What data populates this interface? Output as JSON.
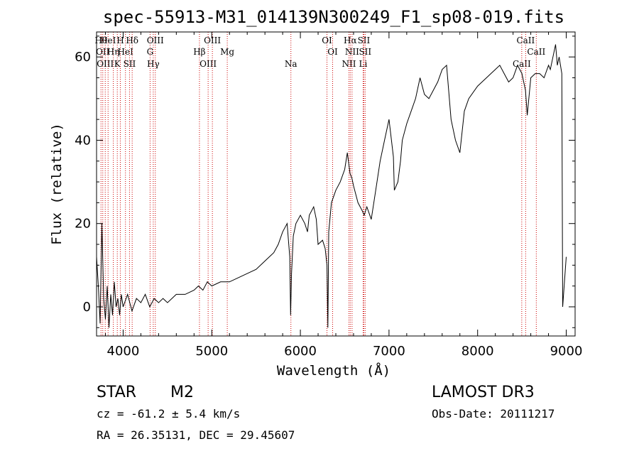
{
  "chart_data": {
    "type": "line",
    "title": "spec-55913-M31_014139N300249_F1_sp08-019.fits",
    "xlabel": "Wavelength (Å)",
    "ylabel": "Flux (relative)",
    "xlim": [
      3700,
      9100
    ],
    "ylim": [
      -7,
      66
    ],
    "xticks": [
      4000,
      5000,
      6000,
      7000,
      8000,
      9000
    ],
    "yticks": [
      0,
      20,
      40,
      60
    ],
    "series": [
      {
        "name": "flux",
        "x": [
          3700,
          3720,
          3740,
          3760,
          3780,
          3800,
          3820,
          3840,
          3860,
          3880,
          3900,
          3920,
          3940,
          3960,
          3980,
          4000,
          4050,
          4100,
          4150,
          4200,
          4250,
          4300,
          4350,
          4400,
          4450,
          4500,
          4600,
          4700,
          4800,
          4850,
          4900,
          4950,
          5000,
          5100,
          5200,
          5300,
          5400,
          5500,
          5600,
          5700,
          5750,
          5800,
          5850,
          5880,
          5890,
          5900,
          5920,
          5950,
          6000,
          6050,
          6080,
          6100,
          6150,
          6180,
          6200,
          6250,
          6280,
          6300,
          6310,
          6320,
          6350,
          6400,
          6450,
          6500,
          6530,
          6560,
          6580,
          6600,
          6650,
          6700,
          6720,
          6750,
          6800,
          6850,
          6900,
          6950,
          7000,
          7050,
          7060,
          7100,
          7130,
          7150,
          7200,
          7250,
          7300,
          7350,
          7400,
          7450,
          7500,
          7550,
          7600,
          7650,
          7700,
          7750,
          7800,
          7850,
          7900,
          8000,
          8050,
          8100,
          8150,
          8200,
          8250,
          8300,
          8350,
          8400,
          8450,
          8500,
          8540,
          8560,
          8600,
          8650,
          8700,
          8750,
          8800,
          8820,
          8850,
          8880,
          8900,
          8920,
          8950,
          8960,
          9000
        ],
        "y": [
          12,
          5,
          -4,
          20,
          2,
          -3,
          5,
          -5,
          3,
          -2,
          6,
          0,
          2,
          -2,
          3,
          0,
          3,
          -1,
          2,
          1,
          3,
          0,
          2,
          1,
          2,
          1,
          3,
          3,
          4,
          5,
          4,
          6,
          5,
          6,
          6,
          7,
          8,
          9,
          11,
          13,
          15,
          18,
          20,
          12,
          -2,
          8,
          17,
          20,
          22,
          20,
          18,
          22,
          24,
          21,
          15,
          16,
          14,
          10,
          -5,
          18,
          25,
          28,
          30,
          33,
          37,
          32,
          31,
          29,
          25,
          23,
          22,
          24,
          21,
          28,
          35,
          40,
          45,
          36,
          28,
          30,
          35,
          40,
          44,
          47,
          50,
          55,
          51,
          50,
          52,
          54,
          57,
          58,
          45,
          40,
          37,
          47,
          50,
          53,
          54,
          55,
          56,
          57,
          58,
          56,
          54,
          55,
          58,
          56,
          52,
          46,
          55,
          56,
          56,
          55,
          58,
          57,
          60,
          63,
          58,
          60,
          56,
          0,
          12
        ]
      }
    ],
    "lines": [
      {
        "wl": 3750,
        "label": "Hθ"
      },
      {
        "wl": 3770,
        "label": "OII"
      },
      {
        "wl": 3798,
        "label": "OIII"
      },
      {
        "wl": 3830,
        "label": "HeI"
      },
      {
        "wl": 3889,
        "label": "Hη"
      },
      {
        "wl": 3934,
        "label": "K"
      },
      {
        "wl": 3968,
        "label": "H"
      },
      {
        "wl": 4026,
        "label": "HeI"
      },
      {
        "wl": 4072,
        "label": "SII"
      },
      {
        "wl": 4102,
        "label": "Hδ"
      },
      {
        "wl": 4304,
        "label": "G"
      },
      {
        "wl": 4340,
        "label": "Hγ"
      },
      {
        "wl": 4363,
        "label": "OIII"
      },
      {
        "wl": 4861,
        "label": "Hβ"
      },
      {
        "wl": 4959,
        "label": "OIII"
      },
      {
        "wl": 5007,
        "label": "OIII"
      },
      {
        "wl": 5175,
        "label": "Mg"
      },
      {
        "wl": 5893,
        "label": "Na"
      },
      {
        "wl": 6300,
        "label": "OI"
      },
      {
        "wl": 6364,
        "label": "OI"
      },
      {
        "wl": 6548,
        "label": "NII"
      },
      {
        "wl": 6563,
        "label": "Hα"
      },
      {
        "wl": 6583,
        "label": "NII"
      },
      {
        "wl": 6708,
        "label": "Li"
      },
      {
        "wl": 6716,
        "label": "SII"
      },
      {
        "wl": 6731,
        "label": "SII"
      },
      {
        "wl": 8498,
        "label": "CaII"
      },
      {
        "wl": 8542,
        "label": "CaII"
      },
      {
        "wl": 8662,
        "label": "CaII"
      }
    ]
  },
  "info": {
    "class": "STAR",
    "subclass": "M2",
    "survey": "LAMOST DR3",
    "cz": "cz = -61.2 ± 5.4 km/s",
    "obs_date": "Obs-Date: 20111217",
    "coords": "RA =  26.35131, DEC =  29.45607"
  },
  "colors": {
    "spectrum": "#000000",
    "lines": "#cc0000",
    "axes": "#000000"
  }
}
